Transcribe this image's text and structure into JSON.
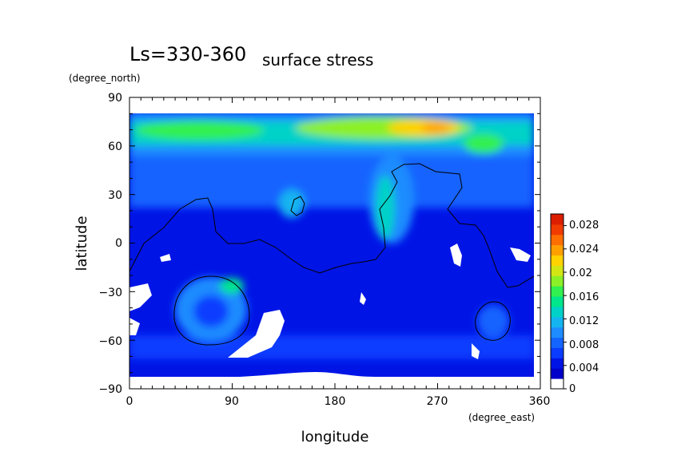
{
  "chart_data": {
    "type": "heatmap",
    "title": "Ls=330-360",
    "subtitle": "surface stress",
    "xlabel": "longitude",
    "ylabel": "latitude",
    "x_units": "(degree_east)",
    "y_units": "(degree_north)",
    "xlim": [
      0,
      360
    ],
    "ylim": [
      -90,
      90
    ],
    "x_ticks": [
      "0",
      "90",
      "180",
      "270",
      "360"
    ],
    "y_ticks": [
      "90",
      "60",
      "30",
      "0",
      "−30",
      "−60",
      "−90"
    ],
    "colorbar": {
      "range": [
        0,
        0.03
      ],
      "labels": [
        "0",
        "0.004",
        "0.008",
        "0.012",
        "0.016",
        "0.02",
        "0.024",
        "0.028"
      ],
      "colors": [
        "#ffffff",
        "#0000c8",
        "#0014e6",
        "#0a3cff",
        "#1464ff",
        "#1e8cff",
        "#14b4f0",
        "#00d2c8",
        "#00e68c",
        "#32f050",
        "#8cf028",
        "#d2e614",
        "#ffd200",
        "#ffa000",
        "#ff6e00",
        "#f03c00",
        "#dc1e00"
      ]
    },
    "series": [
      {
        "kind": "field_maxima",
        "points": [
          {
            "lon": 265,
            "lat": 70,
            "value": 0.022
          },
          {
            "lon": 230,
            "lat": 70,
            "value": 0.018
          },
          {
            "lon": 100,
            "lat": 68,
            "value": 0.015
          },
          {
            "lon": 30,
            "lat": 68,
            "value": 0.014
          },
          {
            "lon": 310,
            "lat": 62,
            "value": 0.016
          },
          {
            "lon": 70,
            "lat": -25,
            "value": 0.013
          },
          {
            "lon": 235,
            "lat": 35,
            "value": 0.011
          },
          {
            "lon": 140,
            "lat": 25,
            "value": 0.01
          }
        ]
      },
      {
        "kind": "masked_regions",
        "regions": [
          "north-of-85",
          "south-of-82",
          "basin-hellas-east",
          "equatorial-islands"
        ]
      }
    ]
  }
}
